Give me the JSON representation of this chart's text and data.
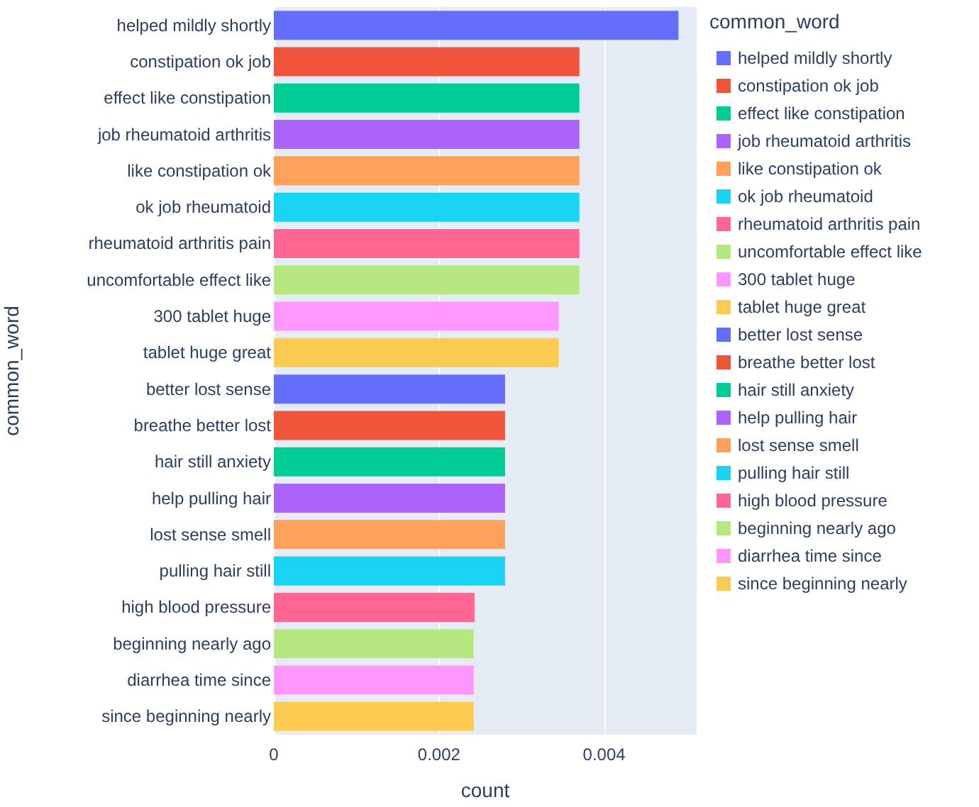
{
  "chart_data": {
    "type": "bar",
    "orientation": "horizontal",
    "stacked": true,
    "xlabel": "count",
    "ylabel": "common_word",
    "legend_title": "common_word",
    "legend": "right",
    "grid": "x",
    "categories": [
      "helped mildly shortly",
      "constipation ok job",
      "effect like constipation",
      "job rheumatoid arthritis",
      "like constipation ok",
      "ok job rheumatoid",
      "rheumatoid arthritis pain",
      "uncomfortable effect like",
      "300 tablet huge",
      "tablet huge great",
      "better lost sense",
      "breathe better lost",
      "hair still anxiety",
      "help pulling hair",
      "lost sense smell",
      "pulling hair still",
      "high blood pressure",
      "beginning nearly ago",
      "diarrhea time since",
      "since beginning nearly"
    ],
    "xlim": [
      0,
      0.00512
    ],
    "xticks": [
      0,
      0.002,
      0.004
    ],
    "series": [
      {
        "name": "helped mildly shortly",
        "color": "#636efa",
        "values": [
          0.0049,
          null,
          null,
          null,
          null,
          null,
          null,
          null,
          null,
          null,
          null,
          null,
          null,
          null,
          null,
          null,
          null,
          null,
          null,
          null
        ]
      },
      {
        "name": "constipation ok job",
        "color": "#ef553b",
        "values": [
          null,
          0.0037,
          null,
          null,
          null,
          null,
          null,
          null,
          null,
          null,
          null,
          null,
          null,
          null,
          null,
          null,
          null,
          null,
          null,
          null
        ]
      },
      {
        "name": "effect like constipation",
        "color": "#00cc96",
        "values": [
          null,
          null,
          0.0037,
          null,
          null,
          null,
          null,
          null,
          null,
          null,
          null,
          null,
          null,
          null,
          null,
          null,
          null,
          null,
          null,
          null
        ]
      },
      {
        "name": "job rheumatoid arthritis",
        "color": "#ab63fa",
        "values": [
          null,
          null,
          null,
          0.0037,
          null,
          null,
          null,
          null,
          null,
          null,
          null,
          null,
          null,
          null,
          null,
          null,
          null,
          null,
          null,
          null
        ]
      },
      {
        "name": "like constipation ok",
        "color": "#ffa15a",
        "values": [
          null,
          null,
          null,
          null,
          0.0037,
          null,
          null,
          null,
          null,
          null,
          null,
          null,
          null,
          null,
          null,
          null,
          null,
          null,
          null,
          null
        ]
      },
      {
        "name": "ok job rheumatoid",
        "color": "#19d3f3",
        "values": [
          null,
          null,
          null,
          null,
          null,
          0.0037,
          null,
          null,
          null,
          null,
          null,
          null,
          null,
          null,
          null,
          null,
          null,
          null,
          null,
          null
        ]
      },
      {
        "name": "rheumatoid arthritis pain",
        "color": "#ff6692",
        "values": [
          null,
          null,
          null,
          null,
          null,
          null,
          0.0037,
          null,
          null,
          null,
          null,
          null,
          null,
          null,
          null,
          null,
          null,
          null,
          null,
          null
        ]
      },
      {
        "name": "uncomfortable effect like",
        "color": "#b6e880",
        "values": [
          null,
          null,
          null,
          null,
          null,
          null,
          null,
          0.0037,
          null,
          null,
          null,
          null,
          null,
          null,
          null,
          null,
          null,
          null,
          null,
          null
        ]
      },
      {
        "name": "300 tablet huge",
        "color": "#ff97ff",
        "values": [
          null,
          null,
          null,
          null,
          null,
          null,
          null,
          null,
          0.00345,
          null,
          null,
          null,
          null,
          null,
          null,
          null,
          null,
          null,
          null,
          null
        ]
      },
      {
        "name": "tablet huge great",
        "color": "#fecb52",
        "values": [
          null,
          null,
          null,
          null,
          null,
          null,
          null,
          null,
          null,
          0.00345,
          null,
          null,
          null,
          null,
          null,
          null,
          null,
          null,
          null,
          null
        ]
      },
      {
        "name": "better lost sense",
        "color": "#636efa",
        "values": [
          null,
          null,
          null,
          null,
          null,
          null,
          null,
          null,
          null,
          null,
          0.0028,
          null,
          null,
          null,
          null,
          null,
          null,
          null,
          null,
          null
        ]
      },
      {
        "name": "breathe better lost",
        "color": "#ef553b",
        "values": [
          null,
          null,
          null,
          null,
          null,
          null,
          null,
          null,
          null,
          null,
          null,
          0.0028,
          null,
          null,
          null,
          null,
          null,
          null,
          null,
          null
        ]
      },
      {
        "name": "hair still anxiety",
        "color": "#00cc96",
        "values": [
          null,
          null,
          null,
          null,
          null,
          null,
          null,
          null,
          null,
          null,
          null,
          null,
          0.0028,
          null,
          null,
          null,
          null,
          null,
          null,
          null
        ]
      },
      {
        "name": "help pulling hair",
        "color": "#ab63fa",
        "values": [
          null,
          null,
          null,
          null,
          null,
          null,
          null,
          null,
          null,
          null,
          null,
          null,
          null,
          0.0028,
          null,
          null,
          null,
          null,
          null,
          null
        ]
      },
      {
        "name": "lost sense smell",
        "color": "#ffa15a",
        "values": [
          null,
          null,
          null,
          null,
          null,
          null,
          null,
          null,
          null,
          null,
          null,
          null,
          null,
          null,
          0.0028,
          null,
          null,
          null,
          null,
          null
        ]
      },
      {
        "name": "pulling hair still",
        "color": "#19d3f3",
        "values": [
          null,
          null,
          null,
          null,
          null,
          null,
          null,
          null,
          null,
          null,
          null,
          null,
          null,
          null,
          null,
          0.0028,
          null,
          null,
          null,
          null
        ]
      },
      {
        "name": "high blood pressure",
        "color": "#ff6692",
        "values": [
          null,
          null,
          null,
          null,
          null,
          null,
          null,
          null,
          null,
          null,
          null,
          null,
          null,
          null,
          null,
          null,
          0.00243,
          null,
          null,
          null
        ]
      },
      {
        "name": "beginning nearly ago",
        "color": "#b6e880",
        "values": [
          null,
          null,
          null,
          null,
          null,
          null,
          null,
          null,
          null,
          null,
          null,
          null,
          null,
          null,
          null,
          null,
          null,
          0.00242,
          null,
          null
        ]
      },
      {
        "name": "diarrhea time since",
        "color": "#ff97ff",
        "values": [
          null,
          null,
          null,
          null,
          null,
          null,
          null,
          null,
          null,
          null,
          null,
          null,
          null,
          null,
          null,
          null,
          null,
          null,
          0.00242,
          null
        ]
      },
      {
        "name": "since beginning nearly",
        "color": "#fecb52",
        "values": [
          null,
          null,
          null,
          null,
          null,
          null,
          null,
          null,
          null,
          null,
          null,
          null,
          null,
          null,
          null,
          null,
          null,
          null,
          null,
          0.00242
        ]
      }
    ]
  }
}
